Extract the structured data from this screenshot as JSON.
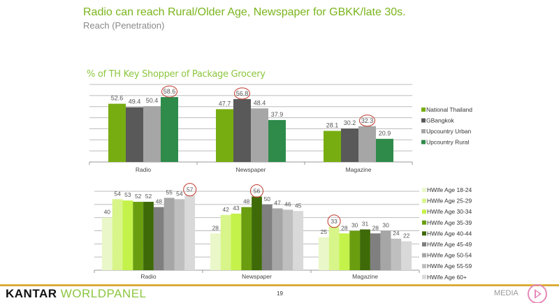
{
  "header": {
    "title": "Radio can reach Rural/Older Age, Newspaper for GBKK/late 30s.",
    "subtitle": "Reach (Penetration)"
  },
  "chart_data": [
    {
      "type": "bar",
      "title": "% of TH Key Shopper of Package Grocery",
      "categories": [
        "Radio",
        "Newspaper",
        "Magazine"
      ],
      "ylim": [
        0,
        70
      ],
      "grid": true,
      "legend": "right",
      "series": [
        {
          "name": "National Thailand",
          "color": "#78ad12",
          "values": [
            52.6,
            47.7,
            28.1
          ]
        },
        {
          "name": "GBangkok",
          "color": "#595959",
          "values": [
            49.4,
            56.8,
            30.2
          ]
        },
        {
          "name": "Upcountry Urban",
          "color": "#a6a6a6",
          "values": [
            50.4,
            48.4,
            32.3
          ]
        },
        {
          "name": "Upcountry Rural",
          "color": "#2e8b4a",
          "values": [
            58.6,
            37.9,
            20.9
          ]
        }
      ],
      "labels": [
        [
          "52.6",
          "47.7",
          "28.1"
        ],
        [
          "49.4",
          "56.8",
          "30.2"
        ],
        [
          "50.4",
          "48.4",
          "32.3"
        ],
        [
          "58.6",
          "37.9",
          "20.9"
        ]
      ],
      "circled": [
        [
          3,
          0
        ],
        [
          1,
          1
        ],
        [
          2,
          2
        ]
      ]
    },
    {
      "type": "bar",
      "categories": [
        "Radio",
        "Newspaper",
        "Magazine"
      ],
      "ylim": [
        0,
        60
      ],
      "grid": true,
      "legend": "right",
      "series": [
        {
          "name": "HWife Age 18-24",
          "color": "#eaf7c8",
          "values": [
            40,
            28,
            25
          ]
        },
        {
          "name": "HWife Age 25-29",
          "color": "#d8f58a",
          "values": [
            54,
            42,
            33
          ]
        },
        {
          "name": "HWife Age 30-34",
          "color": "#c4f24a",
          "values": [
            53,
            43,
            28
          ]
        },
        {
          "name": "HWife Age 35-39",
          "color": "#6a9e10",
          "values": [
            52,
            48,
            30
          ]
        },
        {
          "name": "HWife Age 40-44",
          "color": "#3f6a08",
          "values": [
            52,
            56,
            31
          ]
        },
        {
          "name": "HWife Age 45-49",
          "color": "#7f7f7f",
          "values": [
            48,
            50,
            28
          ]
        },
        {
          "name": "HWife Age 50-54",
          "color": "#a6a6a6",
          "values": [
            55,
            47,
            30
          ]
        },
        {
          "name": "HWife Age 55-59",
          "color": "#bfbfbf",
          "values": [
            54,
            46,
            24
          ]
        },
        {
          "name": "HWife Age 60+",
          "color": "#d9d9d9",
          "values": [
            57,
            45,
            22
          ]
        }
      ],
      "labels": [
        [
          "40",
          "28",
          "25"
        ],
        [
          "54",
          "42",
          "33"
        ],
        [
          "53",
          "43",
          "28"
        ],
        [
          "52",
          "48",
          "30"
        ],
        [
          "52",
          "56",
          "31"
        ],
        [
          "48",
          "50",
          "28"
        ],
        [
          "55",
          "47",
          "30"
        ],
        [
          "54",
          "46",
          "24"
        ],
        [
          "57",
          "45",
          "22"
        ]
      ],
      "circled": [
        [
          8,
          0
        ],
        [
          4,
          1
        ],
        [
          1,
          2
        ]
      ]
    }
  ],
  "footer": {
    "logo": "KANTAR WORLDPANEL",
    "logo_a": "KANTAR ",
    "logo_b": "WORLDPANEL",
    "page": "19",
    "section": "MEDIA"
  }
}
